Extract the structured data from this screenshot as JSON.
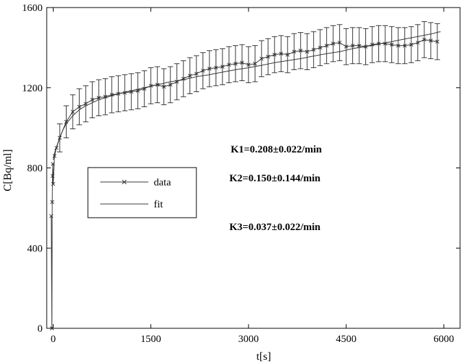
{
  "chart_data": {
    "type": "line",
    "xlabel": "t[s]",
    "ylabel": "C[Bq/ml]",
    "xlim": [
      -100,
      6250
    ],
    "ylim": [
      0,
      1600
    ],
    "xticks": [
      0,
      1500,
      3000,
      4500,
      6000
    ],
    "xtick_labels": [
      "0",
      "1500",
      "3000",
      "4500",
      "6000"
    ],
    "yticks": [
      0,
      400,
      800,
      1200,
      1600
    ],
    "ytick_labels": [
      "0",
      "400",
      "800",
      "1200",
      "1600"
    ],
    "grid": false,
    "legend_position": "center-left",
    "series": [
      {
        "name": "data",
        "marker": "x",
        "color": "#333333",
        "x": [
          -30,
          -20,
          -15,
          -10,
          -5,
          0,
          20,
          50,
          100,
          200,
          300,
          400,
          500,
          600,
          700,
          800,
          900,
          1000,
          1100,
          1200,
          1300,
          1400,
          1500,
          1600,
          1700,
          1800,
          1900,
          2000,
          2100,
          2200,
          2300,
          2400,
          2500,
          2600,
          2700,
          2800,
          2900,
          3000,
          3100,
          3200,
          3300,
          3400,
          3500,
          3600,
          3700,
          3800,
          3900,
          4000,
          4100,
          4200,
          4300,
          4400,
          4500,
          4600,
          4700,
          4800,
          4900,
          5000,
          5100,
          5200,
          5300,
          5400,
          5500,
          5600,
          5700,
          5800,
          5900
        ],
        "y": [
          560,
          0,
          630,
          760,
          820,
          720,
          860,
          900,
          950,
          1030,
          1080,
          1105,
          1120,
          1140,
          1150,
          1155,
          1165,
          1170,
          1175,
          1180,
          1185,
          1195,
          1210,
          1215,
          1205,
          1215,
          1230,
          1245,
          1260,
          1270,
          1285,
          1295,
          1300,
          1305,
          1315,
          1320,
          1325,
          1315,
          1320,
          1345,
          1355,
          1365,
          1370,
          1365,
          1380,
          1385,
          1380,
          1390,
          1400,
          1410,
          1420,
          1425,
          1405,
          1410,
          1410,
          1405,
          1415,
          1420,
          1420,
          1415,
          1410,
          1410,
          1415,
          1425,
          1440,
          1435,
          1430
        ],
        "error": [
          0,
          0,
          0,
          0,
          0,
          0,
          0,
          0,
          70,
          80,
          85,
          90,
          90,
          90,
          90,
          90,
          90,
          90,
          90,
          90,
          90,
          90,
          90,
          90,
          90,
          90,
          90,
          90,
          90,
          90,
          90,
          90,
          90,
          90,
          90,
          90,
          90,
          90,
          90,
          90,
          90,
          90,
          90,
          90,
          90,
          90,
          90,
          90,
          90,
          90,
          90,
          90,
          90,
          90,
          90,
          90,
          90,
          90,
          90,
          90,
          90,
          90,
          90,
          90,
          90,
          90,
          90
        ]
      },
      {
        "name": "fit",
        "marker": "none",
        "color": "#333333",
        "x": [
          0,
          25,
          50,
          100,
          150,
          200,
          300,
          400,
          500,
          600,
          700,
          800,
          900,
          1000,
          1200,
          1400,
          1600,
          1800,
          2000,
          2200,
          2400,
          2600,
          2800,
          3000,
          3200,
          3400,
          3600,
          3800,
          4000,
          4200,
          4400,
          4600,
          4800,
          5000,
          5200,
          5400,
          5600,
          5800,
          5950
        ],
        "y": [
          840,
          880,
          905,
          950,
          990,
          1020,
          1060,
          1090,
          1110,
          1125,
          1140,
          1150,
          1160,
          1170,
          1185,
          1200,
          1215,
          1230,
          1240,
          1255,
          1265,
          1278,
          1290,
          1300,
          1312,
          1325,
          1335,
          1345,
          1358,
          1370,
          1380,
          1395,
          1405,
          1418,
          1430,
          1443,
          1455,
          1468,
          1480
        ]
      }
    ],
    "annotations": [
      "K1=0.208±0.022/min",
      "K2=0.150±0.144/min",
      "K3=0.037±0.022/min"
    ]
  }
}
